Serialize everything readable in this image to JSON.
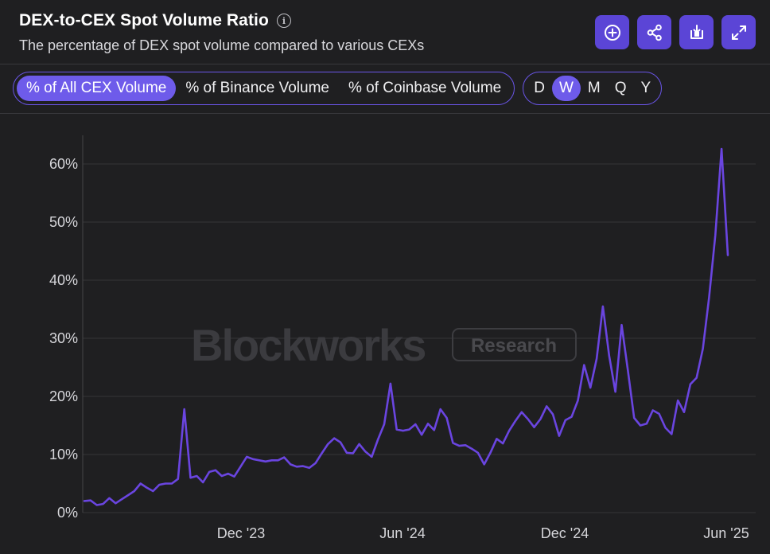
{
  "header": {
    "title": "DEX-to-CEX Spot Volume Ratio",
    "subtitle": "The percentage of DEX spot volume compared to various CEXs",
    "info_icon": "info-icon",
    "actions": [
      {
        "name": "add-icon"
      },
      {
        "name": "share-icon"
      },
      {
        "name": "download-icon"
      },
      {
        "name": "expand-icon"
      }
    ]
  },
  "controls": {
    "metric_tabs": [
      "% of All CEX Volume",
      "% of Binance Volume",
      "% of Coinbase Volume"
    ],
    "active_metric": "% of All CEX Volume",
    "timeframes": [
      "D",
      "W",
      "M",
      "Q",
      "Y"
    ],
    "active_timeframe": "W"
  },
  "colors": {
    "accent": "#5b45d6",
    "line": "#6a45e0",
    "background": "#1f1f21"
  },
  "watermark": {
    "brand": "Blockworks",
    "tag": "Research"
  },
  "chart_data": {
    "type": "line",
    "title": "DEX-to-CEX Spot Volume Ratio",
    "xlabel": "",
    "ylabel": "",
    "ylim": [
      0,
      65
    ],
    "yticks": [
      "0%",
      "10%",
      "20%",
      "30%",
      "40%",
      "50%",
      "60%"
    ],
    "x_tick_labels": [
      "Dec '23",
      "Jun '24",
      "Dec '24",
      "Jun '25"
    ],
    "grid": true,
    "series": [
      {
        "values": [
          2.0,
          2.1,
          1.3,
          1.5,
          2.5,
          1.6,
          2.3,
          3.0,
          3.7,
          5.0,
          4.3,
          3.7,
          4.8,
          5.0,
          5.0,
          5.8,
          17.8,
          6.0,
          6.3,
          5.2,
          7.0,
          7.3,
          6.3,
          6.7,
          6.2,
          7.9,
          9.6,
          9.2,
          9.0,
          8.8,
          9.0,
          9.0,
          9.5,
          8.3,
          7.9,
          8.0,
          7.7,
          8.5,
          10.2,
          11.8,
          12.8,
          12.1,
          10.3,
          10.2,
          11.8,
          10.5,
          9.6,
          12.6,
          15.2,
          22.2,
          14.3,
          14.1,
          14.3,
          15.2,
          13.4,
          15.3,
          14.2,
          17.8,
          16.3,
          12.0,
          11.5,
          11.6,
          11.0,
          10.3,
          8.3,
          10.3,
          12.7,
          11.9,
          14.1,
          15.8,
          17.3,
          16.1,
          14.7,
          16.1,
          18.3,
          16.9,
          13.2,
          15.9,
          16.5,
          19.3,
          25.4,
          21.5,
          26.5,
          35.5,
          27.0,
          20.8,
          32.3,
          24.5,
          16.3,
          15.0,
          15.3,
          17.6,
          17.0,
          14.6,
          13.5,
          19.3,
          17.3,
          22.1,
          23.2,
          28.2,
          37.0,
          47.8,
          62.6,
          44.3
        ]
      }
    ]
  }
}
